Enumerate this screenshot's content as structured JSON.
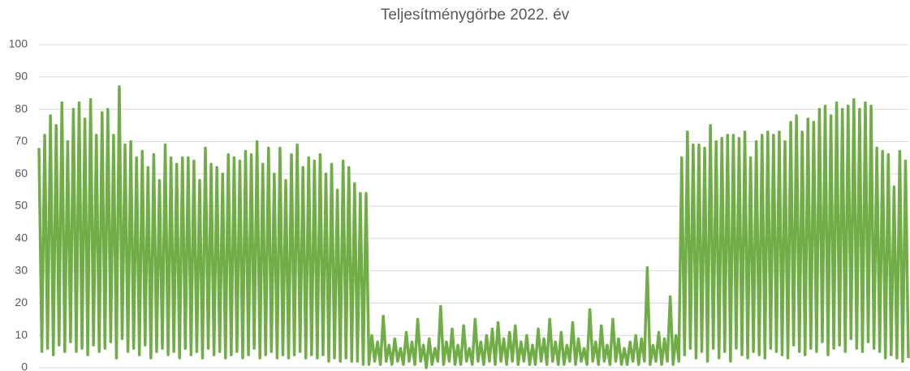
{
  "chart_data": {
    "type": "line",
    "title": "Teljesítménygörbe 2022. év",
    "color": "#70ad47",
    "grid": true,
    "ylim": [
      0,
      100
    ],
    "yticks": [
      0,
      10,
      20,
      30,
      40,
      50,
      60,
      70,
      80,
      90,
      100
    ],
    "values": [
      68,
      5,
      72,
      6,
      78,
      4,
      75,
      7,
      82,
      5,
      70,
      8,
      80,
      5,
      82,
      6,
      77,
      4,
      83,
      7,
      72,
      5,
      79,
      6,
      80,
      8,
      72,
      3,
      87,
      9,
      69,
      5,
      70,
      6,
      65,
      4,
      67,
      7,
      62,
      3,
      66,
      5,
      58,
      6,
      69,
      4,
      65,
      5,
      63,
      3,
      65,
      6,
      65,
      4,
      64,
      5,
      58,
      3,
      68,
      6,
      63,
      4,
      62,
      5,
      60,
      3,
      66,
      4,
      65,
      5,
      64,
      3,
      67,
      4,
      66,
      6,
      70,
      3,
      63,
      4,
      68,
      5,
      60,
      3,
      68,
      4,
      58,
      3,
      66,
      4,
      69,
      5,
      62,
      3,
      65,
      4,
      64,
      3,
      66,
      4,
      60,
      2,
      63,
      3,
      55,
      2,
      64,
      3,
      62,
      2,
      57,
      2,
      54,
      1,
      54,
      1,
      10,
      2,
      8,
      1,
      16,
      2,
      7,
      1,
      9,
      2,
      6,
      1,
      11,
      2,
      8,
      1,
      15,
      2,
      7,
      0,
      9,
      1,
      6,
      2,
      19,
      1,
      8,
      2,
      12,
      1,
      7,
      1,
      13,
      2,
      6,
      1,
      15,
      2,
      8,
      1,
      10,
      2,
      12,
      1,
      14,
      2,
      9,
      1,
      11,
      2,
      13,
      1,
      8,
      2,
      10,
      1,
      7,
      1,
      12,
      2,
      9,
      1,
      15,
      2,
      8,
      1,
      11,
      1,
      7,
      2,
      14,
      1,
      9,
      2,
      6,
      1,
      18,
      2,
      8,
      1,
      13,
      2,
      7,
      1,
      15,
      2,
      9,
      1,
      6,
      1,
      8,
      2,
      10,
      1,
      9,
      2,
      31,
      1,
      7,
      2,
      11,
      1,
      9,
      2,
      22,
      1,
      10,
      2,
      65,
      4,
      73,
      6,
      69,
      3,
      69,
      5,
      68,
      2,
      75,
      6,
      70,
      3,
      71,
      5,
      72,
      2,
      72,
      6,
      71,
      4,
      73,
      3,
      65,
      5,
      70,
      4,
      72,
      3,
      73,
      6,
      72,
      5,
      73,
      4,
      70,
      3,
      76,
      7,
      78,
      5,
      73,
      4,
      77,
      6,
      76,
      5,
      80,
      8,
      81,
      4,
      78,
      6,
      82,
      7,
      80,
      5,
      81,
      9,
      83,
      6,
      80,
      5,
      82,
      8,
      81,
      6,
      68,
      5,
      67,
      3,
      66,
      4,
      56,
      3,
      67,
      2,
      64,
      3
    ]
  }
}
